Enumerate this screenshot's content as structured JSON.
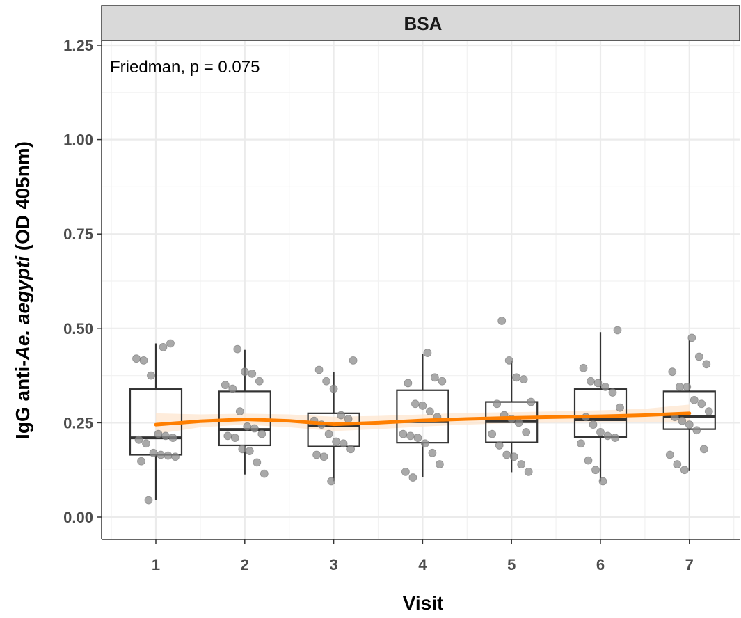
{
  "chart_data": {
    "type": "box",
    "panel_title": "BSA",
    "annotation": "Friedman, p = 0.075",
    "xlabel": "Visit",
    "ylabel_prefix": "IgG anti-",
    "ylabel_italic": "Ae. aegypti",
    "ylabel_suffix": " (OD 405nm)",
    "categories": [
      "1",
      "2",
      "3",
      "4",
      "5",
      "6",
      "7"
    ],
    "ylim": [
      -0.06,
      1.26
    ],
    "yticks": [
      0.0,
      0.25,
      0.5,
      0.75,
      1.0,
      1.25
    ],
    "ytick_labels": [
      "0.00",
      "0.25",
      "0.50",
      "0.75",
      "1.00",
      "1.25"
    ],
    "grid": true,
    "colors": {
      "trend": "#ff7f00",
      "ribbon": "#fde6cf",
      "points": "#8c8c8c",
      "box": "#333333",
      "strip": "#d9d9d9"
    },
    "boxes": [
      {
        "visit": "1",
        "q1": 0.165,
        "median": 0.21,
        "q3": 0.339,
        "whisker_low": 0.045,
        "whisker_high": 0.46
      },
      {
        "visit": "2",
        "q1": 0.19,
        "median": 0.232,
        "q3": 0.333,
        "whisker_low": 0.113,
        "whisker_high": 0.443
      },
      {
        "visit": "3",
        "q1": 0.187,
        "median": 0.242,
        "q3": 0.275,
        "whisker_low": 0.095,
        "whisker_high": 0.385
      },
      {
        "visit": "4",
        "q1": 0.197,
        "median": 0.253,
        "q3": 0.336,
        "whisker_low": 0.106,
        "whisker_high": 0.433
      },
      {
        "visit": "5",
        "q1": 0.198,
        "median": 0.253,
        "q3": 0.305,
        "whisker_low": 0.119,
        "whisker_high": 0.415
      },
      {
        "visit": "6",
        "q1": 0.212,
        "median": 0.258,
        "q3": 0.339,
        "whisker_low": 0.095,
        "whisker_high": 0.49
      },
      {
        "visit": "7",
        "q1": 0.233,
        "median": 0.267,
        "q3": 0.333,
        "whisker_low": 0.122,
        "whisker_high": 0.47
      }
    ],
    "points": [
      {
        "visit": 1,
        "values": [
          0.45,
          0.46,
          0.42,
          0.415,
          0.375,
          0.22,
          0.215,
          0.21,
          0.205,
          0.195,
          0.17,
          0.165,
          0.163,
          0.16,
          0.148,
          0.045
        ]
      },
      {
        "visit": 2,
        "values": [
          0.445,
          0.385,
          0.38,
          0.36,
          0.35,
          0.34,
          0.28,
          0.24,
          0.235,
          0.22,
          0.215,
          0.21,
          0.18,
          0.175,
          0.145,
          0.115
        ]
      },
      {
        "visit": 3,
        "values": [
          0.415,
          0.39,
          0.36,
          0.34,
          0.27,
          0.26,
          0.255,
          0.245,
          0.22,
          0.2,
          0.195,
          0.18,
          0.165,
          0.16,
          0.095
        ]
      },
      {
        "visit": 4,
        "values": [
          0.435,
          0.37,
          0.36,
          0.355,
          0.3,
          0.295,
          0.28,
          0.265,
          0.22,
          0.215,
          0.21,
          0.195,
          0.17,
          0.14,
          0.12,
          0.105
        ]
      },
      {
        "visit": 5,
        "values": [
          0.52,
          0.415,
          0.37,
          0.365,
          0.305,
          0.3,
          0.27,
          0.26,
          0.25,
          0.225,
          0.22,
          0.19,
          0.165,
          0.16,
          0.14,
          0.12
        ]
      },
      {
        "visit": 6,
        "values": [
          0.495,
          0.395,
          0.36,
          0.355,
          0.345,
          0.33,
          0.29,
          0.265,
          0.245,
          0.225,
          0.215,
          0.21,
          0.195,
          0.15,
          0.125,
          0.095
        ]
      },
      {
        "visit": 7,
        "values": [
          0.475,
          0.425,
          0.405,
          0.385,
          0.345,
          0.345,
          0.31,
          0.3,
          0.28,
          0.265,
          0.255,
          0.245,
          0.23,
          0.18,
          0.165,
          0.14,
          0.125
        ]
      }
    ],
    "trend": {
      "x": [
        1,
        1.5,
        2,
        2.5,
        3,
        3.5,
        4,
        4.5,
        5,
        5.5,
        6,
        6.5,
        7
      ],
      "y": [
        0.245,
        0.254,
        0.259,
        0.255,
        0.246,
        0.25,
        0.256,
        0.26,
        0.263,
        0.265,
        0.267,
        0.27,
        0.275
      ],
      "lower": [
        0.22,
        0.238,
        0.245,
        0.238,
        0.228,
        0.233,
        0.24,
        0.245,
        0.249,
        0.25,
        0.251,
        0.252,
        0.25
      ],
      "upper": [
        0.275,
        0.272,
        0.274,
        0.272,
        0.266,
        0.268,
        0.272,
        0.276,
        0.278,
        0.28,
        0.283,
        0.287,
        0.298
      ]
    }
  }
}
